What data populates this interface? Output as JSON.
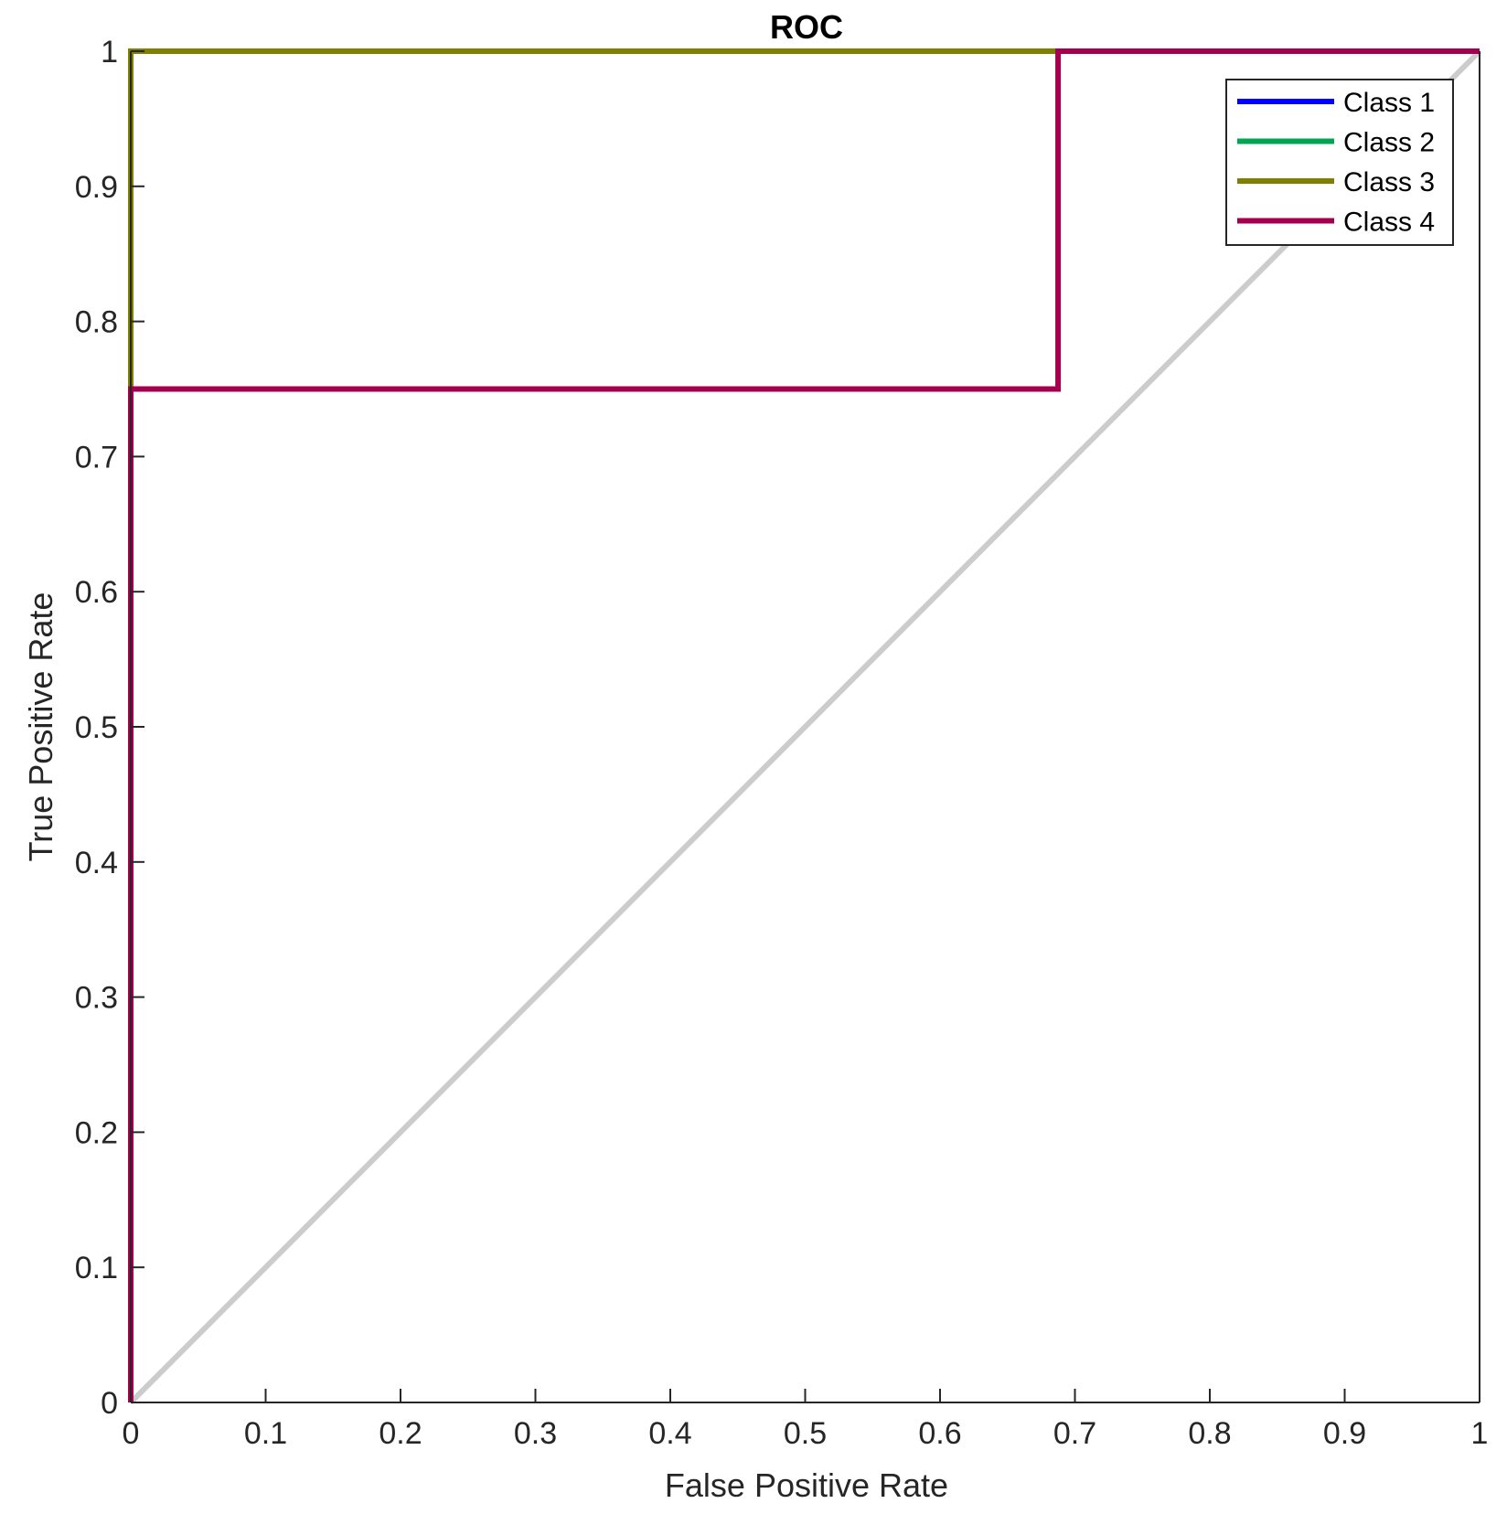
{
  "chart_data": {
    "type": "line",
    "title": "ROC",
    "xlabel": "False Positive Rate",
    "ylabel": "True Positive Rate",
    "xlim": [
      0,
      1
    ],
    "ylim": [
      0,
      1
    ],
    "xticks": [
      "0",
      "0.1",
      "0.2",
      "0.3",
      "0.4",
      "0.5",
      "0.6",
      "0.7",
      "0.8",
      "0.9",
      "1"
    ],
    "yticks": [
      "0",
      "0.1",
      "0.2",
      "0.3",
      "0.4",
      "0.5",
      "0.6",
      "0.7",
      "0.8",
      "0.9",
      "1"
    ],
    "grid": false,
    "legend_position": "top-right",
    "reference_line": {
      "x": [
        0,
        1
      ],
      "y": [
        0,
        1
      ],
      "color": "#cccccc"
    },
    "series": [
      {
        "name": "Class 1",
        "color": "#0000ff",
        "x": [
          0,
          0,
          1
        ],
        "y": [
          0,
          1,
          1
        ]
      },
      {
        "name": "Class 2",
        "color": "#00a651",
        "x": [
          0,
          0,
          1
        ],
        "y": [
          0,
          1,
          1
        ]
      },
      {
        "name": "Class 3",
        "color": "#808000",
        "x": [
          0,
          0,
          1
        ],
        "y": [
          0,
          1,
          1
        ]
      },
      {
        "name": "Class 4",
        "color": "#a50050",
        "x": [
          0,
          0,
          0.6875,
          0.6875,
          1
        ],
        "y": [
          0,
          0.75,
          0.75,
          1,
          1
        ]
      }
    ]
  }
}
